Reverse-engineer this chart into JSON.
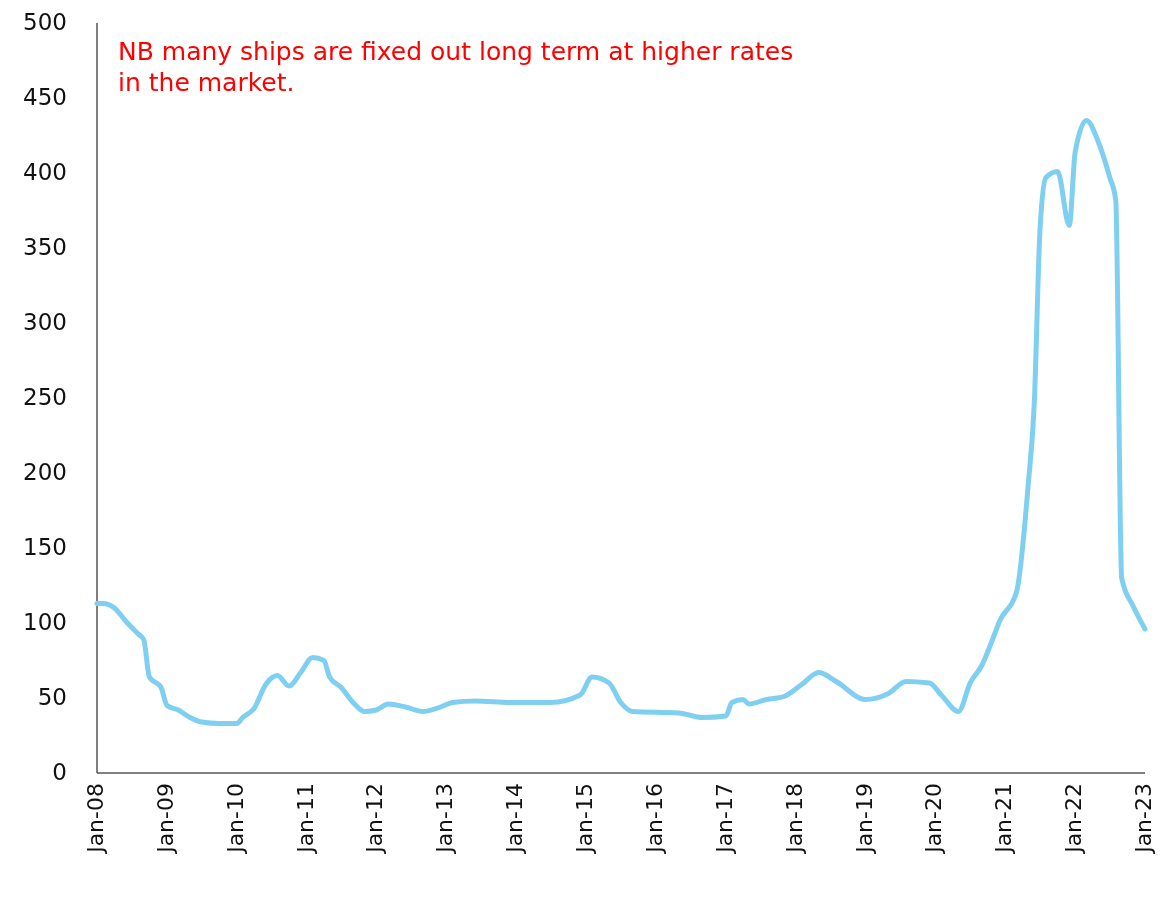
{
  "chart_data": {
    "type": "line",
    "annotations": [
      "NB many ships are fixed out long term at higher rates in the market."
    ],
    "x": [
      "2008-01",
      "2008-02",
      "2008-04",
      "2008-06",
      "2008-08",
      "2008-09",
      "2008-10",
      "2008-12",
      "2009-01",
      "2009-03",
      "2009-05",
      "2009-07",
      "2009-10",
      "2010-01",
      "2010-02",
      "2010-04",
      "2010-06",
      "2010-08",
      "2010-10",
      "2010-12",
      "2011-02",
      "2011-04",
      "2011-05",
      "2011-07",
      "2011-09",
      "2011-11",
      "2012-01",
      "2012-03",
      "2012-06",
      "2012-09",
      "2012-12",
      "2013-02",
      "2013-06",
      "2013-12",
      "2014-07",
      "2014-12",
      "2015-02",
      "2015-05",
      "2015-07",
      "2015-09",
      "2016-05",
      "2016-09",
      "2017-01",
      "2017-02",
      "2017-04",
      "2017-05",
      "2017-08",
      "2017-11",
      "2018-02",
      "2018-05",
      "2018-08",
      "2019-01",
      "2019-05",
      "2019-08",
      "2019-12",
      "2020-02",
      "2020-05",
      "2020-07",
      "2020-09",
      "2020-11",
      "2020-12",
      "2021-03",
      "2021-05",
      "2021-06",
      "2021-07",
      "2021-08",
      "2021-10",
      "2021-12",
      "2022-01",
      "2022-03",
      "2022-05",
      "2022-07",
      "2022-08",
      "2022-09",
      "2022-11",
      "2023-01"
    ],
    "series": [
      {
        "color": "#7fd0f0",
        "values": [
          113,
          113,
          110,
          101,
          93,
          89,
          64,
          57,
          45,
          42,
          37,
          34,
          33,
          33,
          37,
          43,
          59,
          65,
          58,
          67,
          77,
          75,
          64,
          57,
          47,
          41,
          42,
          46,
          44,
          41,
          44,
          47,
          48,
          47,
          47,
          52,
          64,
          60,
          47,
          41,
          40,
          37,
          38,
          47,
          49,
          46,
          49,
          51,
          59,
          67,
          61,
          49,
          53,
          61,
          60,
          52,
          41,
          60,
          72,
          91,
          101,
          121,
          193,
          246,
          362,
          397,
          401,
          365,
          414,
          435,
          421,
          397,
          382,
          130,
          111,
          96
        ]
      }
    ],
    "xlim": [
      "2008-01",
      "2023-01"
    ],
    "xticks": [
      {
        "value": "2008-01",
        "label": "Jan-08"
      },
      {
        "value": "2009-01",
        "label": "Jan-09"
      },
      {
        "value": "2010-01",
        "label": "Jan-10"
      },
      {
        "value": "2011-01",
        "label": "Jan-11"
      },
      {
        "value": "2012-01",
        "label": "Jan-12"
      },
      {
        "value": "2013-01",
        "label": "Jan-13"
      },
      {
        "value": "2014-01",
        "label": "Jan-14"
      },
      {
        "value": "2015-01",
        "label": "Jan-15"
      },
      {
        "value": "2016-01",
        "label": "Jan-16"
      },
      {
        "value": "2017-01",
        "label": "Jan-17"
      },
      {
        "value": "2018-01",
        "label": "Jan-18"
      },
      {
        "value": "2019-01",
        "label": "Jan-19"
      },
      {
        "value": "2020-01",
        "label": "Jan-20"
      },
      {
        "value": "2021-01",
        "label": "Jan-21"
      },
      {
        "value": "2022-01",
        "label": "Jan-22"
      },
      {
        "value": "2023-01",
        "label": "Jan-23"
      }
    ],
    "ylim": [
      0,
      500
    ],
    "yticks": [
      0,
      50,
      100,
      150,
      200,
      250,
      300,
      350,
      400,
      450,
      500
    ],
    "marker": "none",
    "line_style": "solid"
  }
}
